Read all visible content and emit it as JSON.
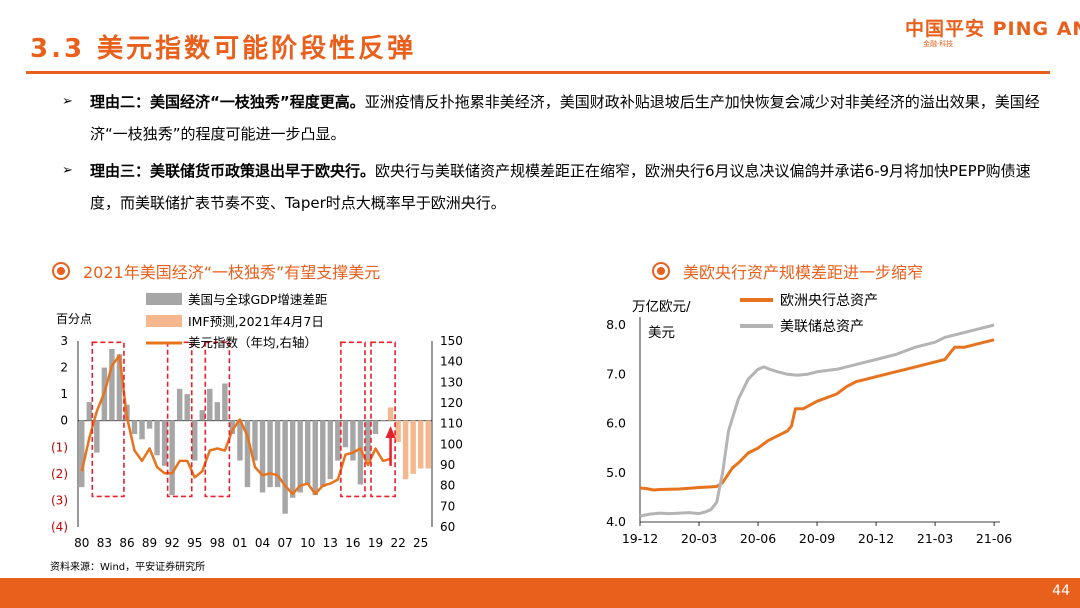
{
  "header": {
    "title": "3.3 美元指数可能阶段性反弹"
  },
  "logo": {
    "text": "中国平安 PING AN",
    "subtitle": "金融·科技"
  },
  "bullets": [
    {
      "lead": "理由二：美国经济“一枝独秀”程度更高。",
      "text": "亚洲疫情反扑拖累非美经济，美国财政补贴退坡后生产加快恢复会减少对非美经济的溢出效果，美国经济“一枝独秀”的程度可能进一步凸显。"
    },
    {
      "lead": "理由三：美联储货币政策退出早于欧央行。",
      "text": "欧央行与美联储资产规模差距正在缩窄，欧洲央行6月议息决议偏鸽并承诺6-9月将加快PEPP购债速度，而美联储扩表节奏不变、Taper时点大概率早于欧洲央行。"
    }
  ],
  "left_chart_title": "2021年美国经济“一枝独秀”有望支撑美元",
  "right_chart_title": "美欧央行资产规模差距进一步缩窄",
  "source": "资料来源：Wind，平安证券研究所",
  "page_number": "44",
  "colors": {
    "accent": "#E8601C",
    "bar_grey": "#A6A6A6",
    "bar_forecast": "#F5B88E",
    "line_orange": "#E8731E",
    "line_grey": "#B4B4B4",
    "box_red": "#E8202A"
  },
  "chart_data": [
    {
      "type": "bar+line",
      "title": "2021年美国经济“一枝独秀”有望支撑美元",
      "ylabel_left": "百分点",
      "ylim_left": [
        -4,
        3
      ],
      "left_tick_labels": [
        "3",
        "2",
        "1",
        "0",
        "(1)",
        "(2)",
        "(3)",
        "(4)"
      ],
      "ylim_right": [
        60,
        150
      ],
      "right_tick_labels": [
        "150",
        "140",
        "130",
        "120",
        "110",
        "100",
        "90",
        "80",
        "70",
        "60"
      ],
      "x_tick_labels": [
        "80",
        "83",
        "86",
        "89",
        "92",
        "95",
        "98",
        "01",
        "04",
        "07",
        "10",
        "13",
        "16",
        "19",
        "22",
        "25"
      ],
      "legend": [
        "美国与全球GDP增速差距",
        "IMF预测,2021年4月7日",
        "美元指数（年均,右轴）"
      ],
      "years": [
        1980,
        1981,
        1982,
        1983,
        1984,
        1985,
        1986,
        1987,
        1988,
        1989,
        1990,
        1991,
        1992,
        1993,
        1994,
        1995,
        1996,
        1997,
        1998,
        1999,
        2000,
        2001,
        2002,
        2003,
        2004,
        2005,
        2006,
        2007,
        2008,
        2009,
        2010,
        2011,
        2012,
        2013,
        2014,
        2015,
        2016,
        2017,
        2018,
        2019,
        2020,
        2021,
        2022,
        2023,
        2024,
        2025,
        2026
      ],
      "gdp_gap": [
        -2.5,
        0.7,
        -1.2,
        2.0,
        2.7,
        2.5,
        0.6,
        -0.5,
        -0.7,
        -0.3,
        -1.3,
        -1.7,
        -2.8,
        1.2,
        1.0,
        -1.5,
        0.4,
        1.2,
        0.7,
        1.4,
        -0.5,
        -1.5,
        -2.5,
        -1.5,
        -2.7,
        -2.5,
        -2.5,
        -3.5,
        -2.9,
        -2.7,
        -2.4,
        -2.8,
        -2.5,
        -2.2,
        -1.5,
        -1.0,
        -1.5,
        -2.4,
        -1.5,
        -0.5,
        0.0
      ],
      "imf_forecast": {
        "start_year": 2021,
        "values": [
          0.5,
          -0.8,
          -2.2,
          -2.0,
          -1.8,
          -1.8
        ]
      },
      "usd_index": [
        87,
        103,
        116,
        125,
        138,
        143,
        113,
        97,
        92,
        98,
        89,
        86,
        86,
        92,
        92,
        84,
        87,
        97,
        98,
        97,
        107,
        112,
        104,
        89,
        85,
        86,
        85,
        80,
        76,
        80,
        81,
        76,
        80,
        81,
        83,
        95,
        96,
        98,
        90,
        98,
        92,
        93
      ],
      "boxes": [
        [
          1982,
          1985
        ],
        [
          1992,
          1994
        ],
        [
          1997,
          1999
        ],
        [
          2015,
          2017
        ],
        [
          2019,
          2021
        ]
      ],
      "annotation": "up-arrow at 2021"
    },
    {
      "type": "line",
      "title": "美欧央行资产规模差距进一步缩窄",
      "ylabel": "万亿欧元/美元",
      "ylim": [
        4.0,
        8.0
      ],
      "y_tick_labels": [
        "8.0",
        "7.0",
        "6.0",
        "5.0",
        "4.0"
      ],
      "x_tick_labels": [
        "19-12",
        "20-03",
        "20-06",
        "20-09",
        "20-12",
        "21-03",
        "21-06"
      ],
      "x_range_months": [
        0,
        18.3
      ],
      "series": [
        {
          "name": "欧洲央行总资产",
          "x": [
            0,
            0.3,
            0.7,
            1,
            2,
            3,
            3.5,
            3.9,
            4.2,
            4.7,
            5,
            5.5,
            6,
            6.5,
            7,
            7.5,
            7.7,
            7.9,
            8.3,
            9,
            10,
            10.5,
            11,
            11.5,
            12,
            13,
            14,
            14.5,
            15,
            15.5,
            15.8,
            16,
            16.5,
            17,
            17.5,
            18
          ],
          "y": [
            4.69,
            4.68,
            4.65,
            4.66,
            4.67,
            4.7,
            4.71,
            4.72,
            4.8,
            5.1,
            5.2,
            5.4,
            5.5,
            5.65,
            5.75,
            5.85,
            5.95,
            6.3,
            6.3,
            6.45,
            6.6,
            6.75,
            6.85,
            6.9,
            6.95,
            7.05,
            7.15,
            7.2,
            7.25,
            7.3,
            7.45,
            7.55,
            7.55,
            7.6,
            7.65,
            7.7
          ]
        },
        {
          "name": "美联储总资产",
          "x": [
            0,
            0.5,
            1,
            1.5,
            2,
            2.5,
            3,
            3.3,
            3.6,
            3.9,
            4.2,
            4.5,
            5,
            5.5,
            6,
            6.3,
            6.6,
            7,
            7.5,
            8,
            8.5,
            9,
            10,
            11,
            11.5,
            12,
            13,
            14,
            15,
            15.5,
            16,
            16.5,
            17,
            17.5,
            18
          ],
          "y": [
            4.12,
            4.16,
            4.18,
            4.17,
            4.18,
            4.19,
            4.17,
            4.2,
            4.25,
            4.4,
            5.0,
            5.85,
            6.5,
            6.9,
            7.1,
            7.15,
            7.1,
            7.05,
            7.0,
            6.98,
            7.0,
            7.05,
            7.1,
            7.2,
            7.25,
            7.3,
            7.4,
            7.55,
            7.65,
            7.75,
            7.8,
            7.85,
            7.9,
            7.95,
            8.0
          ]
        }
      ]
    }
  ]
}
